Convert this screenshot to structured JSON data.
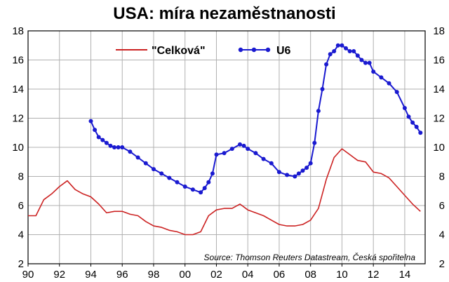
{
  "chart_data": {
    "type": "line",
    "title": "USA: míra nezaměstnanosti",
    "xlabel": "",
    "ylabel": "",
    "source": "Source: Thomson Reuters Datastream, Česká spořitelna",
    "xlim": [
      1990,
      2015.3
    ],
    "ylim": [
      2,
      18
    ],
    "x_ticks": [
      "90",
      "92",
      "94",
      "96",
      "98",
      "00",
      "02",
      "04",
      "06",
      "08",
      "10",
      "12",
      "14"
    ],
    "x_tick_values": [
      1990,
      1992,
      1994,
      1996,
      1998,
      2000,
      2002,
      2004,
      2006,
      2008,
      2010,
      2012,
      2014
    ],
    "y_ticks": [
      "2",
      "4",
      "6",
      "8",
      "10",
      "12",
      "14",
      "16",
      "18"
    ],
    "y_tick_values": [
      2,
      4,
      6,
      8,
      10,
      12,
      14,
      16,
      18
    ],
    "grid": true,
    "legend_position": "top-center",
    "colors": {
      "celkova": "#cc2222",
      "u6": "#1a1ad0",
      "grid": "#b0b0b0"
    },
    "series": [
      {
        "name": "\"Celková\"",
        "x": [
          1990.0,
          1990.5,
          1991.0,
          1991.5,
          1992.0,
          1992.5,
          1993.0,
          1993.5,
          1994.0,
          1994.5,
          1995.0,
          1995.5,
          1996.0,
          1996.5,
          1997.0,
          1997.5,
          1998.0,
          1998.5,
          1999.0,
          1999.5,
          2000.0,
          2000.5,
          2001.0,
          2001.5,
          2002.0,
          2002.5,
          2003.0,
          2003.5,
          2004.0,
          2004.5,
          2005.0,
          2005.5,
          2006.0,
          2006.5,
          2007.0,
          2007.5,
          2008.0,
          2008.5,
          2009.0,
          2009.5,
          2010.0,
          2010.5,
          2011.0,
          2011.5,
          2012.0,
          2012.5,
          2013.0,
          2013.5,
          2014.0,
          2014.5,
          2015.0
        ],
        "values": [
          5.3,
          5.3,
          6.4,
          6.8,
          7.3,
          7.7,
          7.1,
          6.8,
          6.6,
          6.1,
          5.5,
          5.6,
          5.6,
          5.4,
          5.3,
          4.9,
          4.6,
          4.5,
          4.3,
          4.2,
          4.0,
          4.0,
          4.2,
          5.3,
          5.7,
          5.8,
          5.8,
          6.1,
          5.7,
          5.5,
          5.3,
          5.0,
          4.7,
          4.6,
          4.6,
          4.7,
          5.0,
          5.8,
          7.8,
          9.3,
          9.9,
          9.5,
          9.1,
          9.0,
          8.3,
          8.2,
          7.9,
          7.3,
          6.7,
          6.1,
          5.6
        ]
      },
      {
        "name": "U6",
        "x": [
          1994.0,
          1994.25,
          1994.5,
          1994.75,
          1995.0,
          1995.25,
          1995.5,
          1995.75,
          1996.0,
          1996.5,
          1997.0,
          1997.5,
          1998.0,
          1998.5,
          1999.0,
          1999.5,
          2000.0,
          2000.5,
          2001.0,
          2001.25,
          2001.5,
          2001.75,
          2002.0,
          2002.5,
          2003.0,
          2003.5,
          2003.75,
          2004.0,
          2004.5,
          2005.0,
          2005.5,
          2006.0,
          2006.5,
          2007.0,
          2007.25,
          2007.5,
          2007.75,
          2008.0,
          2008.25,
          2008.5,
          2008.75,
          2009.0,
          2009.25,
          2009.5,
          2009.75,
          2010.0,
          2010.25,
          2010.5,
          2010.75,
          2011.0,
          2011.25,
          2011.5,
          2011.75,
          2012.0,
          2012.5,
          2013.0,
          2013.5,
          2014.0,
          2014.25,
          2014.5,
          2014.75,
          2015.0
        ],
        "values": [
          11.8,
          11.2,
          10.7,
          10.5,
          10.3,
          10.1,
          10.0,
          10.0,
          10.0,
          9.7,
          9.3,
          8.9,
          8.5,
          8.2,
          7.9,
          7.6,
          7.3,
          7.1,
          6.9,
          7.2,
          7.6,
          8.2,
          9.5,
          9.6,
          9.9,
          10.2,
          10.1,
          9.9,
          9.6,
          9.2,
          8.9,
          8.3,
          8.1,
          8.0,
          8.2,
          8.4,
          8.6,
          8.9,
          10.3,
          12.5,
          14.0,
          15.7,
          16.4,
          16.6,
          17.0,
          17.0,
          16.8,
          16.6,
          16.6,
          16.3,
          16.0,
          15.8,
          15.8,
          15.2,
          14.8,
          14.4,
          13.8,
          12.7,
          12.1,
          11.7,
          11.4,
          11.0
        ]
      }
    ]
  }
}
